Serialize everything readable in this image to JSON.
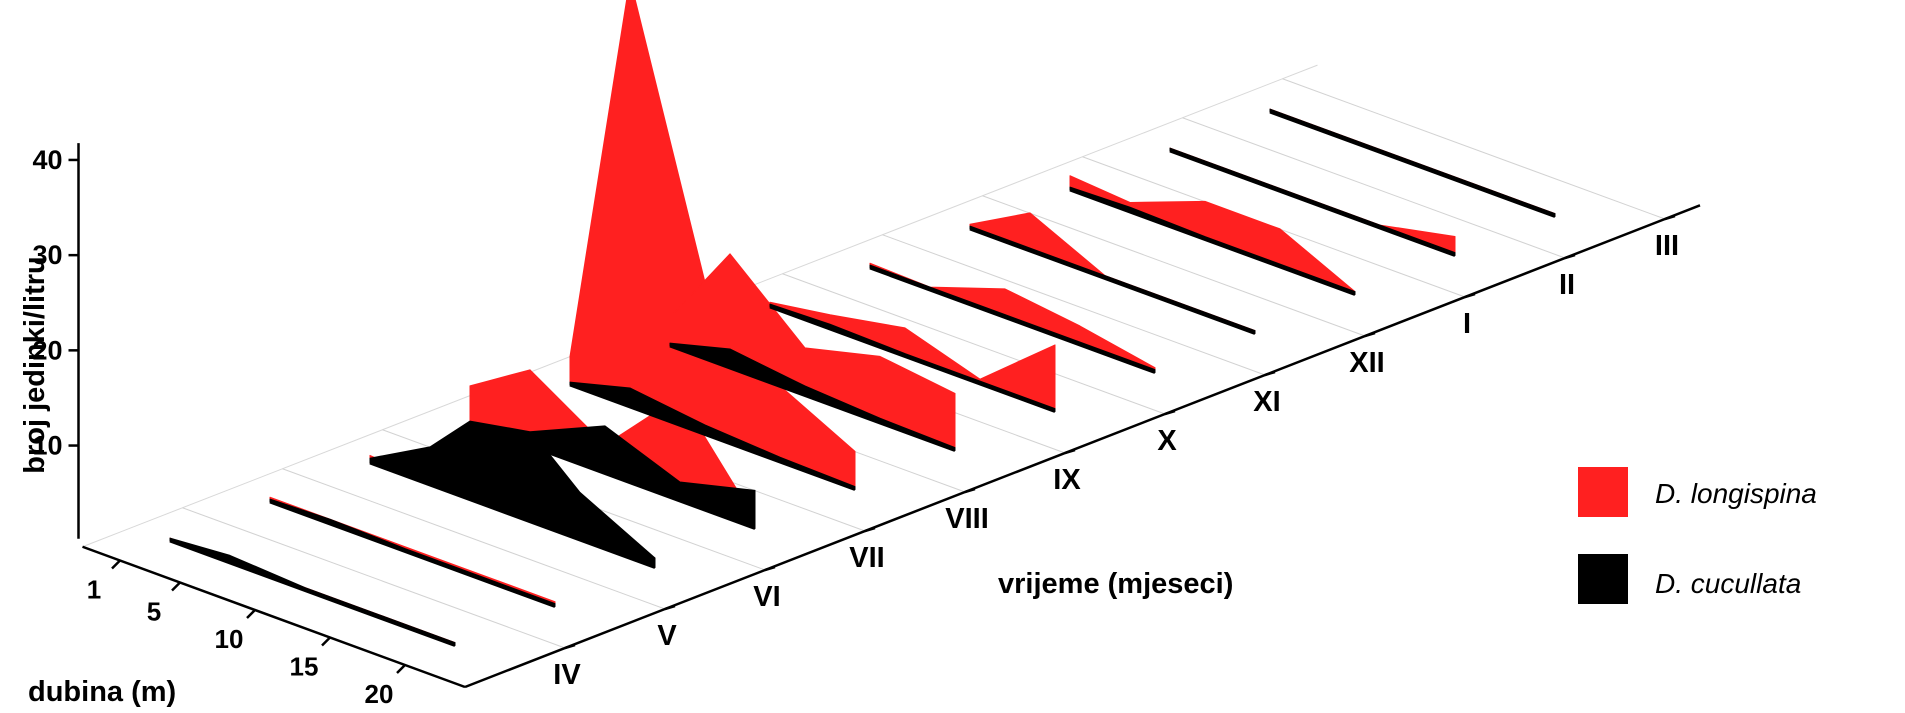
{
  "chart_data": {
    "type": "area",
    "xlabel": "vrijeme (mjeseci)",
    "ylabel": "dubina (m)",
    "zlabel": "broj jedinki/litru",
    "months": [
      "IV",
      "V",
      "VI",
      "VII",
      "VIII",
      "IX",
      "X",
      "XI",
      "XII",
      "I",
      "II",
      "III"
    ],
    "depths": [
      1,
      5,
      10,
      15,
      20
    ],
    "z_ticks": [
      10,
      20,
      30,
      40
    ],
    "zlim": [
      0,
      40
    ],
    "legend_position": "right",
    "series": [
      {
        "name": "D. longispina",
        "color": "#ff2020",
        "values": [
          [
            0.3,
            0.3,
            0.3,
            0.3,
            0.3
          ],
          [
            0.5,
            0.5,
            0.5,
            0.5,
            0.5
          ],
          [
            0.8,
            0.3,
            0.3,
            0.5,
            1.0
          ],
          [
            4,
            8,
            3,
            11,
            1
          ],
          [
            3,
            45,
            16,
            8,
            4
          ],
          [
            3,
            12,
            5,
            7,
            6
          ],
          [
            0.5,
            1.5,
            3,
            0.5,
            7
          ],
          [
            0.5,
            0.3,
            3,
            2,
            0.5
          ],
          [
            0.5,
            4,
            0.3,
            0.3,
            0.3
          ],
          [
            1.5,
            1,
            4,
            4,
            0.3
          ],
          [
            0.3,
            0.3,
            0.3,
            0.3,
            2
          ],
          [
            0.3,
            0.3,
            0.3,
            0.3,
            0.3
          ]
        ]
      },
      {
        "name": "D. cucullata",
        "color": "#000000",
        "values": [
          [
            0.3,
            0.8,
            0.3,
            0.3,
            0.3
          ],
          [
            0.3,
            0.5,
            0.3,
            0.3,
            0.3
          ],
          [
            0.5,
            4,
            12,
            5,
            1
          ],
          [
            0.3,
            1.5,
            5,
            2,
            4
          ],
          [
            0.3,
            2,
            1,
            0.5,
            0.3
          ],
          [
            0.3,
            2,
            1,
            0.5,
            0.3
          ],
          [
            0.3,
            0.5,
            0.3,
            0.3,
            0.3
          ],
          [
            0.3,
            0.3,
            0.3,
            0.3,
            0.3
          ],
          [
            0.3,
            0.3,
            0.3,
            0.3,
            0.3
          ],
          [
            0.3,
            0.5,
            0.3,
            0.3,
            0.3
          ],
          [
            0.3,
            0.3,
            0.3,
            0.3,
            0.3
          ],
          [
            0.3,
            0.3,
            0.3,
            0.3,
            0.3
          ]
        ]
      }
    ]
  }
}
